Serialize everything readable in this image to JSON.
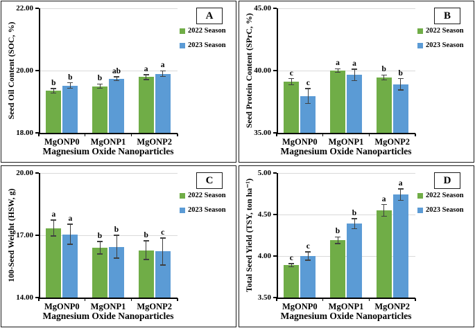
{
  "figure": {
    "background": "#ffffff",
    "series_colors": {
      "season_2022": "#70AD47",
      "season_2023": "#5B9BD5"
    },
    "gridline_color": "#d9d9d9",
    "error_bar_color": "#3f3f3f",
    "legend": [
      "2022 Season",
      "2023 Season"
    ],
    "legend_position": "right-top",
    "x_axis_title": "Magnesium Oxide Nanoparticles",
    "categories": [
      "MgONP0",
      "MgONP1",
      "MgONP2"
    ]
  },
  "chart_data": [
    {
      "type": "bar",
      "panel_label": "A",
      "ylabel": "Seed Oil Content (SOC, %)",
      "xlabel": "Magnesium Oxide Nanoparticles",
      "categories": [
        "MgONP0",
        "MgONP1",
        "MgONP2"
      ],
      "ylim": [
        18,
        22
      ],
      "grid": true,
      "yticks": [
        {
          "value": 18,
          "label": "18.00"
        },
        {
          "value": 20,
          "label": "20.00"
        },
        {
          "value": 22,
          "label": "22.00"
        }
      ],
      "series": [
        {
          "name": "2022 Season",
          "color": "#70AD47",
          "values": [
            19.35,
            19.5,
            19.79
          ],
          "errors": [
            0.07,
            0.07,
            0.08
          ],
          "letters": [
            "b",
            "b",
            "a"
          ]
        },
        {
          "name": "2023 Season",
          "color": "#5B9BD5",
          "values": [
            19.52,
            19.74,
            19.9
          ],
          "errors": [
            0.09,
            0.06,
            0.09
          ],
          "letters": [
            "b",
            "ab",
            "a"
          ]
        }
      ]
    },
    {
      "type": "bar",
      "panel_label": "B",
      "ylabel": "Seed Protein Content (SPrC, %)",
      "xlabel": "Magnesium Oxide Nanoparticles",
      "categories": [
        "MgONP0",
        "MgONP1",
        "MgONP2"
      ],
      "ylim": [
        35,
        45
      ],
      "grid": true,
      "yticks": [
        {
          "value": 35,
          "label": "35.00"
        },
        {
          "value": 40,
          "label": "40.00"
        },
        {
          "value": 45,
          "label": "45.00"
        }
      ],
      "series": [
        {
          "name": "2022 Season",
          "color": "#70AD47",
          "values": [
            39.1,
            40.0,
            39.45
          ],
          "errors": [
            0.25,
            0.15,
            0.2
          ],
          "letters": [
            "c",
            "a",
            "b"
          ]
        },
        {
          "name": "2023 Season",
          "color": "#5B9BD5",
          "values": [
            37.95,
            39.65,
            38.9
          ],
          "errors": [
            0.6,
            0.45,
            0.45
          ],
          "letters": [
            "c",
            "a",
            "b"
          ]
        }
      ]
    },
    {
      "type": "bar",
      "panel_label": "C",
      "ylabel": "100-Seed Weight (HSW, g)",
      "xlabel": "Magnesium Oxide Nanoparticles",
      "categories": [
        "MgONP0",
        "MgONP1",
        "MgONP2"
      ],
      "ylim": [
        14,
        20
      ],
      "grid": true,
      "yticks": [
        {
          "value": 14,
          "label": "14.00"
        },
        {
          "value": 17,
          "label": "17.00"
        },
        {
          "value": 20,
          "label": "20.00"
        }
      ],
      "series": [
        {
          "name": "2022 Season",
          "color": "#70AD47",
          "values": [
            17.35,
            16.4,
            16.28
          ],
          "errors": [
            0.38,
            0.3,
            0.45
          ],
          "letters": [
            "a",
            "b",
            "b"
          ]
        },
        {
          "name": "2023 Season",
          "color": "#5B9BD5",
          "values": [
            17.05,
            16.45,
            16.22
          ],
          "errors": [
            0.48,
            0.55,
            0.65
          ],
          "letters": [
            "a",
            "b",
            "c"
          ]
        }
      ]
    },
    {
      "type": "bar",
      "panel_label": "D",
      "ylabel": "Total Seed Yield (TSY, ton ha⁻¹)",
      "xlabel": "Magnesium Oxide Nanoparticles",
      "categories": [
        "MgONP0",
        "MgONP1",
        "MgONP2"
      ],
      "ylim": [
        3.5,
        5.0
      ],
      "grid": true,
      "yticks": [
        {
          "value": 3.5,
          "label": "3.50"
        },
        {
          "value": 4.0,
          "label": "4.00"
        },
        {
          "value": 4.5,
          "label": "4.50"
        },
        {
          "value": 5.0,
          "label": "5.00"
        }
      ],
      "series": [
        {
          "name": "2022 Season",
          "color": "#70AD47",
          "values": [
            3.89,
            4.19,
            4.55
          ],
          "errors": [
            0.02,
            0.04,
            0.07
          ],
          "letters": [
            "c",
            "b",
            "a"
          ]
        },
        {
          "name": "2023 Season",
          "color": "#5B9BD5",
          "values": [
            4.0,
            4.39,
            4.74
          ],
          "errors": [
            0.05,
            0.06,
            0.07
          ],
          "letters": [
            "c",
            "b",
            "a"
          ]
        }
      ]
    }
  ]
}
